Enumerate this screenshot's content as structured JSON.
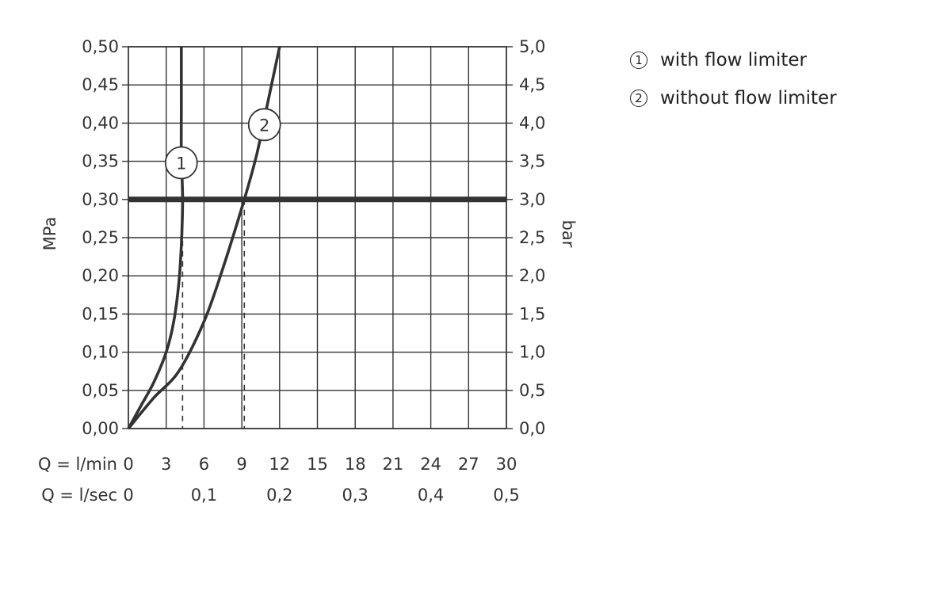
{
  "chart_data": {
    "type": "line",
    "y_left": {
      "label": "MPa",
      "ticks": [
        "0,00",
        "0,05",
        "0,10",
        "0,15",
        "0,20",
        "0,25",
        "0,30",
        "0,35",
        "0,40",
        "0,45",
        "0,50"
      ],
      "range": [
        0,
        0.5
      ]
    },
    "y_right": {
      "label": "bar",
      "ticks": [
        "0,0",
        "0,5",
        "1,0",
        "1,5",
        "2,0",
        "2,5",
        "3,0",
        "3,5",
        "4,0",
        "4,5",
        "5,0"
      ],
      "range": [
        0,
        5
      ]
    },
    "x": {
      "row1_label": "Q = l/min",
      "row1_ticks": [
        "0",
        "3",
        "6",
        "9",
        "12",
        "15",
        "18",
        "21",
        "24",
        "27",
        "30"
      ],
      "row2_label": "Q = l/sec",
      "row2_ticks": [
        "0",
        "0,1",
        "0,2",
        "0,3",
        "0,4",
        "0,5"
      ],
      "range": [
        0,
        30
      ]
    },
    "reference_line": {
      "y": 0.3
    },
    "drop_lines": [
      4.3,
      9.2
    ],
    "grid": true,
    "series": [
      {
        "marker": "1",
        "points": [
          [
            0,
            0
          ],
          [
            1,
            0.03
          ],
          [
            2,
            0.06
          ],
          [
            3,
            0.1
          ],
          [
            3.6,
            0.14
          ],
          [
            4.0,
            0.19
          ],
          [
            4.2,
            0.24
          ],
          [
            4.3,
            0.3
          ],
          [
            4.2,
            0.36
          ],
          [
            4.2,
            0.42
          ],
          [
            4.2,
            0.5
          ]
        ]
      },
      {
        "marker": "2",
        "points": [
          [
            0,
            0
          ],
          [
            2,
            0.04
          ],
          [
            4,
            0.075
          ],
          [
            6,
            0.14
          ],
          [
            7.5,
            0.21
          ],
          [
            9.2,
            0.3
          ],
          [
            10.2,
            0.36
          ],
          [
            11.1,
            0.43
          ],
          [
            12,
            0.5
          ]
        ]
      }
    ],
    "series_labels": [
      {
        "marker": "1",
        "x": 4.2,
        "y": 0.348
      },
      {
        "marker": "2",
        "x": 10.8,
        "y": 0.398
      }
    ],
    "legend": {
      "position": "top-right",
      "items": [
        {
          "marker": "①",
          "label": "with flow limiter"
        },
        {
          "marker": "②",
          "label": "without flow limiter"
        }
      ]
    }
  }
}
